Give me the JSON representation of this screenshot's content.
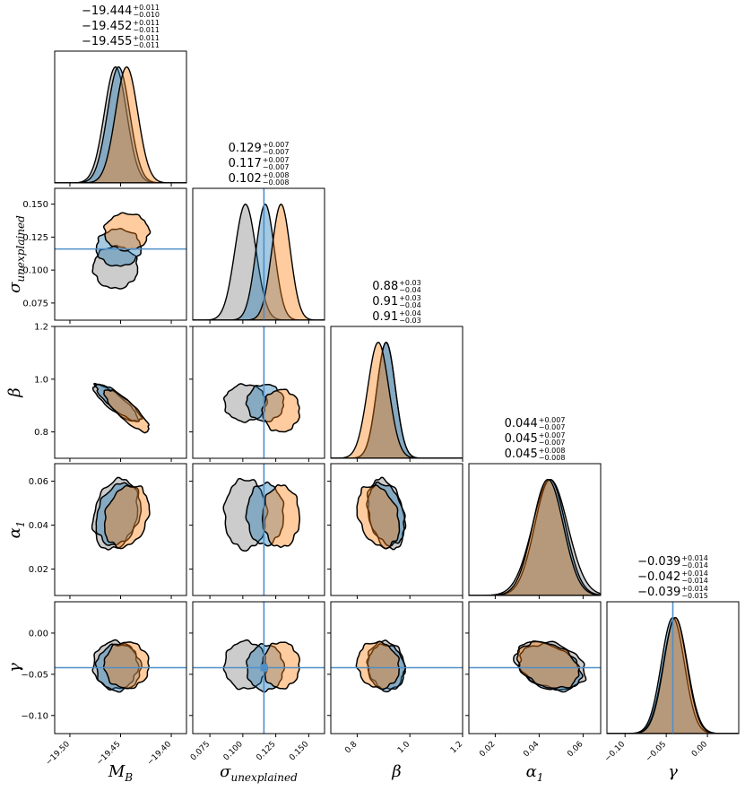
{
  "chart_data": {
    "type": "corner",
    "parameters": [
      {
        "key": "MB",
        "label": "M",
        "label_sub": "B",
        "range": [
          -19.515,
          -19.385
        ],
        "ticks": [
          -19.5,
          -19.45,
          -19.4
        ],
        "tick_labels": [
          "−19.50",
          "−19.45",
          "−19.40"
        ]
      },
      {
        "key": "sigma",
        "label": "σ",
        "label_sub": "unexplained",
        "range": [
          0.062,
          0.162
        ],
        "ticks": [
          0.075,
          0.1,
          0.125,
          0.15
        ],
        "tick_labels": [
          "0.075",
          "0.100",
          "0.125",
          "0.150"
        ]
      },
      {
        "key": "beta",
        "label": "β",
        "label_sub": "",
        "range": [
          0.7,
          1.2
        ],
        "ticks": [
          0.8,
          1.0,
          1.2
        ],
        "tick_labels": [
          "0.8",
          "1.0",
          "1.2"
        ]
      },
      {
        "key": "alpha1",
        "label": "α",
        "label_sub": "1",
        "range": [
          0.008,
          0.068
        ],
        "ticks": [
          0.02,
          0.04,
          0.06
        ],
        "tick_labels": [
          "0.02",
          "0.04",
          "0.06"
        ]
      },
      {
        "key": "gamma",
        "label": "γ",
        "label_sub": "",
        "range": [
          -0.122,
          0.038
        ],
        "ticks": [
          -0.1,
          -0.05,
          0.0
        ],
        "tick_labels": [
          "−0.10",
          "−0.05",
          "0.00"
        ]
      }
    ],
    "series": [
      {
        "color": "#ff7f0e",
        "means": [
          -19.444,
          0.129,
          0.88,
          0.044,
          -0.039
        ],
        "sds": [
          0.011,
          0.007,
          0.04,
          0.007,
          0.014
        ],
        "stats": [
          {
            "v": "−19.444",
            "up": "+0.011",
            "down": "−0.010"
          },
          {
            "v": "0.129",
            "up": "+0.007",
            "down": "−0.007"
          },
          {
            "v": "0.88",
            "up": "+0.03",
            "down": "−0.04"
          },
          {
            "v": "0.044",
            "up": "+0.007",
            "down": "−0.007"
          },
          {
            "v": "−0.039",
            "up": "+0.014",
            "down": "−0.014"
          }
        ]
      },
      {
        "color": "#1f77b4",
        "means": [
          -19.452,
          0.117,
          0.91,
          0.045,
          -0.042
        ],
        "sds": [
          0.011,
          0.007,
          0.035,
          0.007,
          0.014
        ],
        "stats": [
          {
            "v": "−19.452",
            "up": "+0.011",
            "down": "−0.011"
          },
          {
            "v": "0.117",
            "up": "+0.007",
            "down": "−0.007"
          },
          {
            "v": "0.91",
            "up": "+0.03",
            "down": "−0.04"
          },
          {
            "v": "0.045",
            "up": "+0.007",
            "down": "−0.007"
          },
          {
            "v": "−0.042",
            "up": "+0.014",
            "down": "−0.014"
          }
        ]
      },
      {
        "color": "#7f7f7f",
        "means": [
          -19.455,
          0.102,
          0.91,
          0.045,
          -0.039
        ],
        "sds": [
          0.011,
          0.008,
          0.035,
          0.008,
          0.0145
        ],
        "stats": [
          {
            "v": "−19.455",
            "up": "+0.011",
            "down": "−0.011"
          },
          {
            "v": "0.102",
            "up": "+0.008",
            "down": "−0.008"
          },
          {
            "v": "0.91",
            "up": "+0.04",
            "down": "−0.03"
          },
          {
            "v": "0.045",
            "up": "+0.008",
            "down": "−0.008"
          },
          {
            "v": "−0.039",
            "up": "+0.014",
            "down": "−0.015"
          }
        ]
      }
    ],
    "correlations": [
      {
        "i": 2,
        "j": 0,
        "rho": -0.85
      },
      {
        "i": 3,
        "j": 0,
        "rho": 0.25
      },
      {
        "i": 3,
        "j": 2,
        "rho": -0.3
      },
      {
        "i": 4,
        "j": 3,
        "rho": -0.3
      },
      {
        "i": 4,
        "j": 2,
        "rho": -0.1
      }
    ],
    "truth": {
      "sigma": 0.116,
      "gamma": -0.042
    },
    "contour_level_sigma": 2.0,
    "grid": false,
    "legend": "none"
  }
}
